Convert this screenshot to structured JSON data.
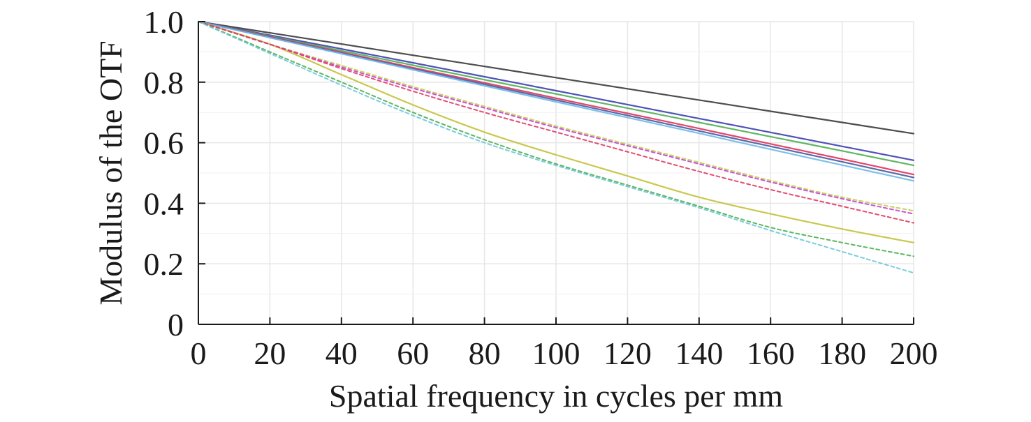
{
  "chart_data": {
    "type": "line",
    "title": "",
    "xlabel": "Spatial frequency in cycles per mm",
    "ylabel": "Modulus of the OTF",
    "xlim": [
      0,
      200
    ],
    "ylim": [
      0,
      1.0
    ],
    "x_ticks": [
      0,
      20,
      40,
      60,
      80,
      100,
      120,
      140,
      160,
      180,
      200
    ],
    "y_ticks": [
      0,
      0.2,
      0.4,
      0.6,
      0.8,
      1.0
    ],
    "x_tick_labels": [
      "0",
      "20",
      "40",
      "60",
      "80",
      "100",
      "120",
      "140",
      "160",
      "180",
      "200"
    ],
    "y_tick_labels": [
      "0",
      "0.2",
      "0.4",
      "0.6",
      "0.8",
      "1.0"
    ],
    "grid": true,
    "legend": "none",
    "x": [
      0,
      20,
      40,
      60,
      80,
      100,
      120,
      140,
      160,
      180,
      200
    ],
    "series": [
      {
        "color": "#3a3a3a",
        "style": "solid",
        "values": [
          1.0,
          0.963,
          0.926,
          0.889,
          0.852,
          0.815,
          0.778,
          0.741,
          0.704,
          0.667,
          0.63
        ]
      },
      {
        "color": "#3b3fb0",
        "style": "solid",
        "values": [
          1.0,
          0.955,
          0.91,
          0.864,
          0.818,
          0.772,
          0.726,
          0.68,
          0.634,
          0.588,
          0.542
        ]
      },
      {
        "color": "#4caf50",
        "style": "solid",
        "values": [
          1.0,
          0.952,
          0.904,
          0.856,
          0.808,
          0.761,
          0.714,
          0.667,
          0.62,
          0.573,
          0.525
        ]
      },
      {
        "color": "#e0325a",
        "style": "solid",
        "values": [
          1.0,
          0.95,
          0.899,
          0.848,
          0.798,
          0.747,
          0.697,
          0.647,
          0.596,
          0.546,
          0.495
        ]
      },
      {
        "color": "#4a5a9e",
        "style": "solid",
        "values": [
          1.0,
          0.948,
          0.896,
          0.844,
          0.793,
          0.741,
          0.69,
          0.639,
          0.588,
          0.537,
          0.485
        ]
      },
      {
        "color": "#6fb8e8",
        "style": "solid",
        "values": [
          1.0,
          0.947,
          0.894,
          0.841,
          0.788,
          0.735,
          0.683,
          0.631,
          0.578,
          0.526,
          0.474
        ]
      },
      {
        "color": "#c3c23a",
        "style": "solid",
        "values": [
          1.0,
          0.925,
          0.825,
          0.725,
          0.635,
          0.56,
          0.49,
          0.42,
          0.365,
          0.315,
          0.27
        ]
      },
      {
        "color": "#c6cc4a",
        "style": "dashed",
        "values": [
          1.0,
          0.925,
          0.855,
          0.785,
          0.72,
          0.655,
          0.595,
          0.535,
          0.475,
          0.42,
          0.375
        ]
      },
      {
        "color": "#c23fd6",
        "style": "dashed",
        "values": [
          1.0,
          0.925,
          0.85,
          0.78,
          0.715,
          0.65,
          0.59,
          0.53,
          0.47,
          0.415,
          0.365
        ]
      },
      {
        "color": "#e03a62",
        "style": "dashed",
        "values": [
          1.0,
          0.925,
          0.845,
          0.77,
          0.7,
          0.635,
          0.57,
          0.505,
          0.445,
          0.39,
          0.335
        ]
      },
      {
        "color": "#4caf50",
        "style": "dashed",
        "values": [
          1.0,
          0.9,
          0.8,
          0.7,
          0.61,
          0.53,
          0.46,
          0.39,
          0.32,
          0.27,
          0.225
        ]
      },
      {
        "color": "#6cc8d8",
        "style": "dashed",
        "values": [
          1.0,
          0.895,
          0.79,
          0.69,
          0.6,
          0.525,
          0.455,
          0.385,
          0.31,
          0.24,
          0.17
        ]
      }
    ]
  }
}
